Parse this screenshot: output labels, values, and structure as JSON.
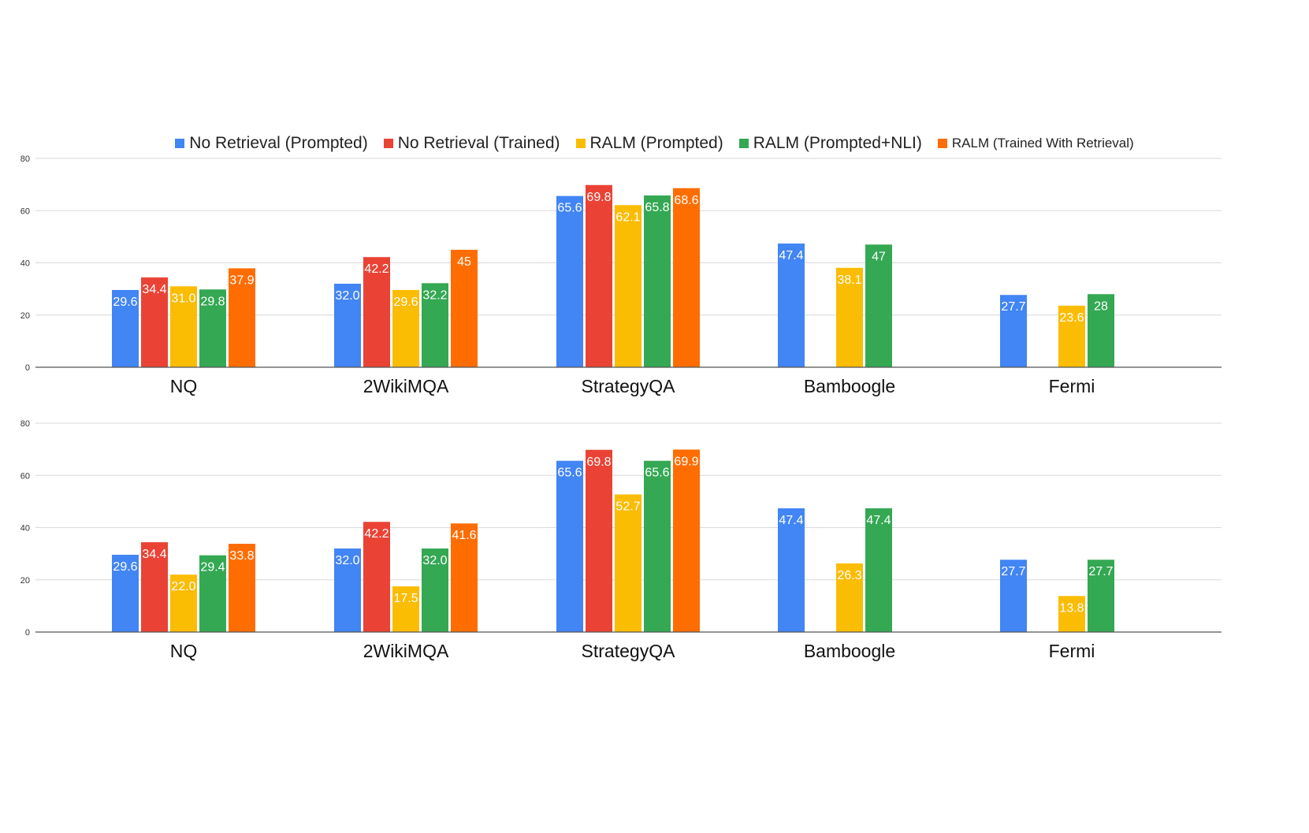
{
  "legend": [
    {
      "name": "No Retrieval (Prompted)",
      "color": "#4285F4"
    },
    {
      "name": "No Retrieval (Trained)",
      "color": "#EA4335"
    },
    {
      "name": "RALM (Prompted)",
      "color": "#FBBC04"
    },
    {
      "name": "RALM (Prompted+NLI)",
      "color": "#34A853"
    },
    {
      "name": "RALM (Trained With Retrieval)",
      "color": "#FF6D01"
    }
  ],
  "chart_data": [
    {
      "type": "bar",
      "categories": [
        "NQ",
        "2WikiMQA",
        "StrategyQA",
        "Bamboogle",
        "Fermi"
      ],
      "ylim": [
        0,
        80
      ],
      "yticks": [
        "0",
        "20",
        "40",
        "60",
        "80"
      ],
      "grid": true,
      "legend_position": "top",
      "series": [
        {
          "name": "No Retrieval (Prompted)",
          "values": [
            29.6,
            32.0,
            65.6,
            47.4,
            27.7
          ],
          "labels": [
            "29.6",
            "32.0",
            "65.6",
            "47.4",
            "27.7"
          ]
        },
        {
          "name": "No Retrieval (Trained)",
          "values": [
            34.4,
            42.2,
            69.8,
            null,
            null
          ],
          "labels": [
            "34.4",
            "42.2",
            "69.8",
            null,
            null
          ]
        },
        {
          "name": "RALM (Prompted)",
          "values": [
            31.0,
            29.6,
            62.1,
            38.1,
            23.6
          ],
          "labels": [
            "31.0",
            "29.6",
            "62.1",
            "38.1",
            "23.6"
          ]
        },
        {
          "name": "RALM (Prompted+NLI)",
          "values": [
            29.8,
            32.2,
            65.8,
            47,
            28
          ],
          "labels": [
            "29.8",
            "32.2",
            "65.8",
            "47",
            "28"
          ]
        },
        {
          "name": "RALM (Trained With Retrieval)",
          "values": [
            37.9,
            45,
            68.6,
            null,
            null
          ],
          "labels": [
            "37.9",
            "45",
            "68.6",
            null,
            null
          ]
        }
      ]
    },
    {
      "type": "bar",
      "categories": [
        "NQ",
        "2WikiMQA",
        "StrategyQA",
        "Bamboogle",
        "Fermi"
      ],
      "ylim": [
        0,
        80
      ],
      "yticks": [
        "0",
        "20",
        "40",
        "60",
        "80"
      ],
      "grid": true,
      "legend_position": "top",
      "series": [
        {
          "name": "No Retrieval (Prompted)",
          "values": [
            29.6,
            32.0,
            65.6,
            47.4,
            27.7
          ],
          "labels": [
            "29.6",
            "32.0",
            "65.6",
            "47.4",
            "27.7"
          ]
        },
        {
          "name": "No Retrieval (Trained)",
          "values": [
            34.4,
            42.2,
            69.8,
            null,
            null
          ],
          "labels": [
            "34.4",
            "42.2",
            "69.8",
            null,
            null
          ]
        },
        {
          "name": "RALM (Prompted)",
          "values": [
            22.0,
            17.5,
            52.7,
            26.3,
            13.8
          ],
          "labels": [
            "22.0",
            "17.5",
            "52.7",
            "26.3",
            "13.8"
          ]
        },
        {
          "name": "RALM (Prompted+NLI)",
          "values": [
            29.4,
            32.0,
            65.6,
            47.4,
            27.7
          ],
          "labels": [
            "29.4",
            "32.0",
            "65.6",
            "47.4",
            "27.7"
          ]
        },
        {
          "name": "RALM (Trained With Retrieval)",
          "values": [
            33.8,
            41.6,
            69.9,
            null,
            null
          ],
          "labels": [
            "33.8",
            "41.6",
            "69.9",
            null,
            null
          ]
        }
      ]
    }
  ]
}
